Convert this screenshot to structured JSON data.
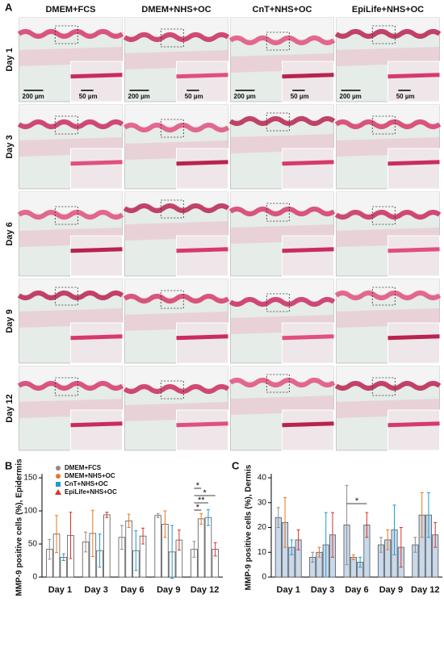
{
  "panel_labels": [
    "A",
    "B",
    "C"
  ],
  "histology": {
    "columns": [
      "DMEM+FCS",
      "DMEM+NHS+OC",
      "CnT+NHS+OC",
      "EpiLife+NHS+OC"
    ],
    "rows": [
      "Day 1",
      "Day 3",
      "Day 6",
      "Day 9",
      "Day 12"
    ],
    "scale_bars": [
      "200 µm",
      "50 µm"
    ]
  },
  "chart_data": [
    {
      "type": "bar",
      "ylabel": "MMP-9 positive cells (%), Epidermis",
      "categories": [
        "Day 1",
        "Day 3",
        "Day 6",
        "Day 9",
        "Day 12"
      ],
      "series": [
        {
          "name": "DMEM+FCS",
          "color": "#8c8c8c",
          "marker": "circle",
          "values": [
            42,
            53,
            60,
            93,
            42
          ],
          "errors": [
            15,
            15,
            18,
            3,
            12
          ]
        },
        {
          "name": "DMEM+NHS+OC",
          "color": "#e87722",
          "marker": "circle",
          "values": [
            65,
            66,
            85,
            80,
            88
          ],
          "errors": [
            28,
            35,
            10,
            20,
            8
          ]
        },
        {
          "name": "CnT+NHS+OC",
          "color": "#1f9bd1",
          "marker": "square",
          "values": [
            30,
            40,
            40,
            38,
            90
          ],
          "errors": [
            5,
            25,
            30,
            40,
            12
          ]
        },
        {
          "name": "EpiLife+NHS+OC",
          "color": "#d9342b",
          "marker": "triangle",
          "values": [
            63,
            94,
            62,
            56,
            42
          ],
          "errors": [
            35,
            4,
            12,
            15,
            10
          ]
        }
      ],
      "bar_fill": "#ffffff",
      "ylim": [
        0,
        150
      ],
      "yticks": [
        0,
        50,
        100,
        150
      ],
      "legend": "top-left",
      "annotations": [
        "*",
        "**",
        "*",
        "*"
      ]
    },
    {
      "type": "bar",
      "ylabel": "MMP-9 positive cells (%), Dermis",
      "categories": [
        "Day 1",
        "Day 3",
        "Day 6",
        "Day 9",
        "Day 12"
      ],
      "series": [
        {
          "name": "DMEM+FCS",
          "color": "#8c8c8c",
          "marker": "circle",
          "values": [
            24,
            8,
            21,
            13,
            13
          ],
          "errors": [
            4,
            2,
            16,
            3,
            3
          ]
        },
        {
          "name": "DMEM+NHS+OC",
          "color": "#e87722",
          "marker": "circle",
          "values": [
            22,
            10,
            8,
            15,
            25
          ],
          "errors": [
            10,
            2,
            1,
            4,
            9
          ]
        },
        {
          "name": "CnT+NHS+OC",
          "color": "#1f9bd1",
          "marker": "square",
          "values": [
            12,
            13,
            6,
            19,
            25
          ],
          "errors": [
            3,
            13,
            2,
            10,
            9
          ]
        },
        {
          "name": "EpiLife+NHS+OC",
          "color": "#d9342b",
          "marker": "triangle",
          "values": [
            15,
            17,
            21,
            12,
            17
          ],
          "errors": [
            4,
            9,
            5,
            8,
            5
          ]
        }
      ],
      "bar_fill": "#c9d9ec",
      "ylim": [
        0,
        40
      ],
      "yticks": [
        0,
        10,
        20,
        30,
        40
      ],
      "annotations": [
        "*"
      ]
    }
  ]
}
